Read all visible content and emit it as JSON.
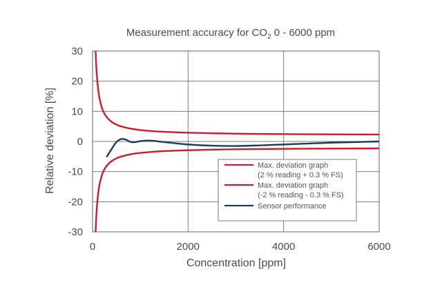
{
  "colors": {
    "upper_limit": "#d0192a",
    "lower_limit": "#d0192a",
    "sensor": "#1d3d55",
    "grid": "#7a7a7a",
    "text": "#4a4a4a"
  },
  "chart_data": {
    "type": "line",
    "title_main": "Measurement accuracy for CO",
    "title_sub": "2",
    "title_rest": " 0 - 6000 ppm",
    "xlabel": "Concentration [ppm]",
    "ylabel": "Relative deviation [%]",
    "xlim": [
      0,
      6000
    ],
    "ylim": [
      -30,
      30
    ],
    "x_ticks": [
      0,
      2000,
      4000,
      6000
    ],
    "y_ticks": [
      30,
      20,
      10,
      0,
      -10,
      -20,
      -30
    ],
    "grid": true,
    "legend_position": "bottom-right",
    "legend": [
      {
        "line1": "Max. deviation graph",
        "line2": "(2 % reading + 0.3 % FS)"
      },
      {
        "line1": "Max. deviation graph",
        "line2": "(-2 % reading - 0.3 % FS)"
      },
      {
        "line1": "Sensor performance",
        "line2": ""
      }
    ],
    "series": [
      {
        "x": [
          60,
          70,
          80,
          100,
          125,
          150,
          200,
          250,
          300,
          400,
          500,
          600,
          800,
          1000,
          1200,
          1500,
          2000,
          2500,
          3000,
          3500,
          4000,
          4500,
          5000,
          5500,
          6000
        ],
        "y": [
          32,
          27.7,
          24.5,
          20,
          16.4,
          14,
          11,
          9.2,
          8,
          6.5,
          5.6,
          5,
          4.25,
          3.8,
          3.5,
          3.2,
          2.9,
          2.72,
          2.6,
          2.51,
          2.45,
          2.4,
          2.36,
          2.33,
          2.3
        ]
      },
      {
        "x": [
          60,
          70,
          80,
          100,
          125,
          150,
          200,
          250,
          300,
          400,
          500,
          600,
          800,
          1000,
          1200,
          1500,
          2000,
          2500,
          3000,
          3500,
          4000,
          4500,
          5000,
          5500,
          6000
        ],
        "y": [
          -32,
          -27.7,
          -24.5,
          -20,
          -16.4,
          -14,
          -11,
          -9.2,
          -8,
          -6.5,
          -5.6,
          -5,
          -4.25,
          -3.8,
          -3.5,
          -3.2,
          -2.9,
          -2.72,
          -2.6,
          -2.51,
          -2.45,
          -2.4,
          -2.36,
          -2.33,
          -2.3
        ]
      },
      {
        "x": [
          300,
          400,
          500,
          600,
          700,
          800,
          900,
          1000,
          1200,
          1500,
          2000,
          2500,
          3000,
          3500,
          4000,
          4500,
          5000,
          5500,
          6000
        ],
        "y": [
          -5,
          -2.5,
          -0.2,
          0.8,
          0.6,
          -0.2,
          -0.2,
          0.1,
          0.3,
          -0.2,
          -1.0,
          -1.4,
          -1.5,
          -1.3,
          -1.0,
          -0.7,
          -0.4,
          -0.2,
          0
        ]
      }
    ]
  }
}
